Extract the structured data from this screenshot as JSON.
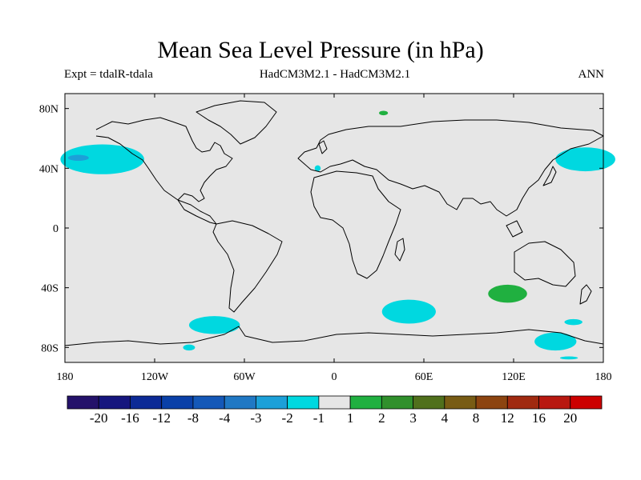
{
  "title": "Mean Sea Level Pressure (in hPa)",
  "subtitle_left": "Expt = tdalR-tdala",
  "subtitle_center": "HadCM3M2.1 - HadCM3M2.1",
  "subtitle_right": "ANN",
  "colors": {
    "ocean_land_background": "#e6e6e6",
    "negative_fill": "#00d8e0",
    "negative_deep_fill": "#1ca0d8",
    "positive_fill": "#20b040",
    "coastline": "#000000"
  },
  "chart_data": {
    "type": "heatmap",
    "projection": "cylindrical equidistant",
    "variable": "mean sea level pressure difference",
    "units": "hPa",
    "lon_range": [
      -180,
      180
    ],
    "lat_range": [
      -90,
      90
    ],
    "x_ticks": [
      {
        "value": -180,
        "label": "180"
      },
      {
        "value": -120,
        "label": "120W"
      },
      {
        "value": -60,
        "label": "60W"
      },
      {
        "value": 0,
        "label": "0"
      },
      {
        "value": 60,
        "label": "60E"
      },
      {
        "value": 120,
        "label": "120E"
      },
      {
        "value": 180,
        "label": "180"
      }
    ],
    "y_ticks": [
      {
        "value": 80,
        "label": "80N"
      },
      {
        "value": 40,
        "label": "40N"
      },
      {
        "value": 0,
        "label": "0"
      },
      {
        "value": -40,
        "label": "40S"
      },
      {
        "value": -80,
        "label": "80S"
      }
    ],
    "anomaly_regions": [
      {
        "name": "north-pacific-low",
        "bin": "-2 to -1",
        "lon_center": -155,
        "lat_center": 46,
        "lon_half_width": 28,
        "lat_half_width": 10
      },
      {
        "name": "north-pacific-core",
        "bin": "-3 to -2",
        "lon_center": -171,
        "lat_center": 47,
        "lon_half_width": 7,
        "lat_half_width": 2
      },
      {
        "name": "nw-pacific-low",
        "bin": "-2 to -1",
        "lon_center": 168,
        "lat_center": 46,
        "lon_half_width": 20,
        "lat_half_width": 8
      },
      {
        "name": "drake-passage-low",
        "bin": "-2 to -1",
        "lon_center": -80,
        "lat_center": -65,
        "lon_half_width": 17,
        "lat_half_width": 6
      },
      {
        "name": "south-pacific-low",
        "bin": "-2 to -1",
        "lon_center": -97,
        "lat_center": -80,
        "lon_half_width": 4,
        "lat_half_width": 2
      },
      {
        "name": "south-atlantic-indian-low",
        "bin": "-2 to -1",
        "lon_center": 50,
        "lat_center": -56,
        "lon_half_width": 18,
        "lat_half_width": 8
      },
      {
        "name": "ross-sea-low",
        "bin": "-2 to -1",
        "lon_center": 148,
        "lat_center": -76,
        "lon_half_width": 14,
        "lat_half_width": 6
      },
      {
        "name": "tasman-low",
        "bin": "-2 to -1",
        "lon_center": 160,
        "lat_center": -63,
        "lon_half_width": 6,
        "lat_half_width": 2
      },
      {
        "name": "antarctic-coast-low",
        "bin": "-2 to -1",
        "lon_center": 157,
        "lat_center": -87,
        "lon_half_width": 6,
        "lat_half_width": 1
      },
      {
        "name": "west-mediterranean-low",
        "bin": "-2 to -1",
        "lon_center": -11,
        "lat_center": 40,
        "lon_half_width": 2,
        "lat_half_width": 2
      },
      {
        "name": "south-indian-high",
        "bin": "1 to 2",
        "lon_center": 116,
        "lat_center": -44,
        "lon_half_width": 13,
        "lat_half_width": 6
      },
      {
        "name": "barents-high",
        "bin": "1 to 2",
        "lon_center": 33,
        "lat_center": 77,
        "lon_half_width": 3,
        "lat_half_width": 1.5
      }
    ],
    "colorbar": {
      "levels": [
        -20,
        -16,
        -12,
        -8,
        -4,
        -3,
        -2,
        -1,
        1,
        2,
        3,
        4,
        8,
        12,
        16,
        20
      ],
      "labels": [
        "-20",
        "-16",
        "-12",
        "-8",
        "-4",
        "-3",
        "-2",
        "-1",
        "1",
        "2",
        "3",
        "4",
        "8",
        "12",
        "16",
        "20"
      ],
      "colors": [
        "#24126a",
        "#16167e",
        "#0c2a96",
        "#0a40a8",
        "#1458b8",
        "#2078c4",
        "#1ca0d8",
        "#00d8e0",
        "#e6e6e6",
        "#20b040",
        "#30902c",
        "#50701c",
        "#785c14",
        "#8c4410",
        "#a02a10",
        "#b81810",
        "#cc0000"
      ]
    }
  }
}
